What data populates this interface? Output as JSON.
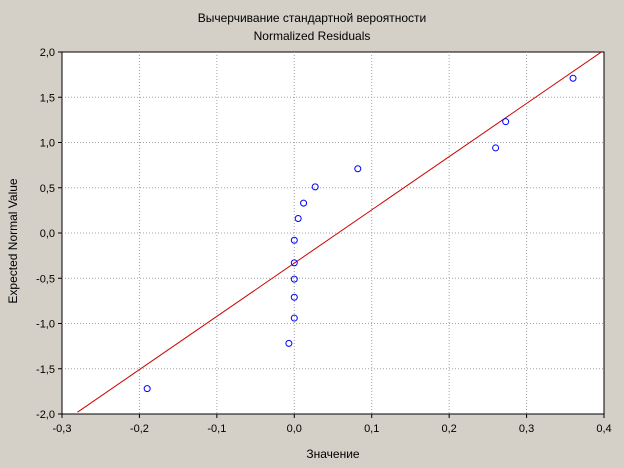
{
  "chart_data": {
    "type": "scatter",
    "title": "Вычерчивание стандартной вероятности",
    "subtitle": "Normalized Residuals",
    "xlabel": "Значение",
    "ylabel": "Expected Normal Value",
    "xlim": [
      -0.3,
      0.4
    ],
    "ylim": [
      -2.0,
      2.0
    ],
    "x_ticks": [
      -0.3,
      -0.2,
      -0.1,
      0.0,
      0.1,
      0.2,
      0.3,
      0.4
    ],
    "x_tick_labels": [
      "-0,3",
      "-0,2",
      "-0,1",
      "0,0",
      "0,1",
      "0,2",
      "0,3",
      "0,4"
    ],
    "y_ticks": [
      -2.0,
      -1.5,
      -1.0,
      -0.5,
      0.0,
      0.5,
      1.0,
      1.5,
      2.0
    ],
    "y_tick_labels": [
      "-2,0",
      "-1,5",
      "-1,0",
      "-0,5",
      "0,0",
      "0,5",
      "1,0",
      "1,5",
      "2,0"
    ],
    "grid": true,
    "points": [
      {
        "x": -0.19,
        "y": -1.72
      },
      {
        "x": -0.007,
        "y": -1.22
      },
      {
        "x": 0.0,
        "y": -0.94
      },
      {
        "x": 0.0,
        "y": -0.71
      },
      {
        "x": 0.0,
        "y": -0.51
      },
      {
        "x": 0.0,
        "y": -0.33
      },
      {
        "x": 0.0,
        "y": -0.08
      },
      {
        "x": 0.005,
        "y": 0.16
      },
      {
        "x": 0.012,
        "y": 0.33
      },
      {
        "x": 0.027,
        "y": 0.51
      },
      {
        "x": 0.082,
        "y": 0.71
      },
      {
        "x": 0.26,
        "y": 0.94
      },
      {
        "x": 0.273,
        "y": 1.23
      },
      {
        "x": 0.36,
        "y": 1.71
      }
    ],
    "fit_line": {
      "x": [
        -0.28,
        0.4
      ],
      "y": [
        -1.98,
        2.02
      ]
    },
    "colors": {
      "background": "#d4d0c8",
      "plot_area": "#ffffff",
      "points": "#0000ff",
      "fit_line": "#cc0000",
      "grid": "#a0a0a0"
    }
  }
}
